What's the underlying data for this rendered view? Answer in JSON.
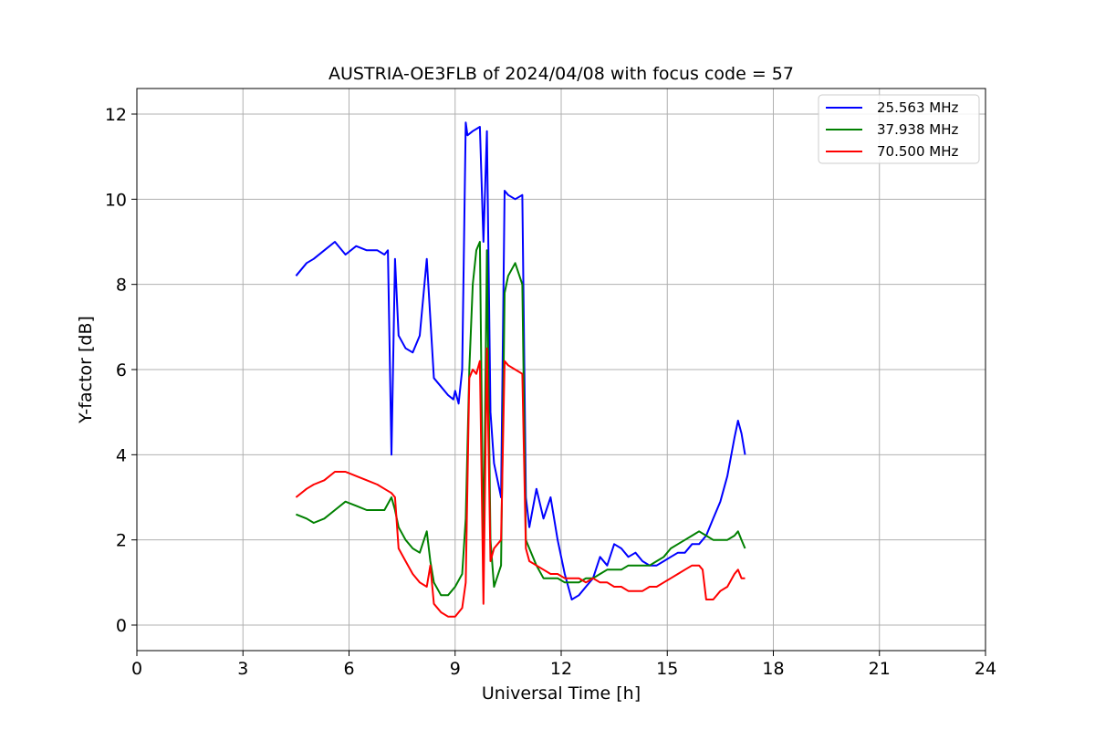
{
  "chart_data": {
    "type": "line",
    "title": "AUSTRIA-OE3FLB of 2024/04/08 with focus code = 57",
    "xlabel": "Universal Time [h]",
    "ylabel": "Y-factor [dB]",
    "xlim": [
      0,
      24
    ],
    "ylim": [
      -0.6,
      12.6
    ],
    "xticks": [
      0,
      3,
      6,
      9,
      12,
      15,
      18,
      21,
      24
    ],
    "yticks": [
      0,
      2,
      4,
      6,
      8,
      10,
      12
    ],
    "grid": true,
    "legend_position": "top-right",
    "series": [
      {
        "name": "25.563 MHz",
        "color": "#0000ff",
        "x": [
          4.5,
          4.8,
          5.0,
          5.3,
          5.6,
          5.9,
          6.2,
          6.5,
          6.8,
          7.0,
          7.1,
          7.2,
          7.3,
          7.4,
          7.6,
          7.8,
          8.0,
          8.2,
          8.4,
          8.6,
          8.8,
          8.95,
          9.0,
          9.1,
          9.2,
          9.3,
          9.35,
          9.5,
          9.7,
          9.8,
          9.9,
          10.0,
          10.1,
          10.3,
          10.4,
          10.5,
          10.7,
          10.9,
          11.0,
          11.1,
          11.3,
          11.5,
          11.7,
          11.9,
          12.1,
          12.3,
          12.5,
          12.7,
          12.9,
          13.1,
          13.3,
          13.5,
          13.7,
          13.9,
          14.1,
          14.3,
          14.5,
          14.7,
          14.9,
          15.1,
          15.3,
          15.5,
          15.7,
          15.9,
          16.1,
          16.3,
          16.5,
          16.7,
          16.9,
          17.0,
          17.1,
          17.2
        ],
        "y": [
          8.2,
          8.5,
          8.6,
          8.8,
          9.0,
          8.7,
          8.9,
          8.8,
          8.8,
          8.7,
          8.8,
          4.0,
          8.6,
          6.8,
          6.5,
          6.4,
          6.8,
          8.6,
          5.8,
          5.6,
          5.4,
          5.3,
          5.5,
          5.2,
          6.0,
          11.8,
          11.5,
          11.6,
          11.7,
          9.0,
          11.6,
          5.0,
          3.8,
          3.0,
          10.2,
          10.1,
          10.0,
          10.1,
          3.0,
          2.3,
          3.2,
          2.5,
          3.0,
          2.0,
          1.2,
          0.6,
          0.7,
          0.9,
          1.1,
          1.6,
          1.4,
          1.9,
          1.8,
          1.6,
          1.7,
          1.5,
          1.4,
          1.4,
          1.5,
          1.6,
          1.7,
          1.7,
          1.9,
          1.9,
          2.1,
          2.5,
          2.9,
          3.5,
          4.4,
          4.8,
          4.5,
          4.0
        ]
      },
      {
        "name": "37.938 MHz",
        "color": "#008000",
        "x": [
          4.5,
          4.8,
          5.0,
          5.3,
          5.6,
          5.9,
          6.2,
          6.5,
          6.8,
          7.0,
          7.2,
          7.3,
          7.4,
          7.6,
          7.8,
          8.0,
          8.2,
          8.3,
          8.4,
          8.6,
          8.8,
          9.0,
          9.2,
          9.3,
          9.4,
          9.5,
          9.6,
          9.7,
          9.8,
          9.9,
          10.0,
          10.1,
          10.3,
          10.4,
          10.5,
          10.7,
          10.9,
          11.0,
          11.1,
          11.3,
          11.5,
          11.7,
          11.9,
          12.1,
          12.3,
          12.5,
          12.7,
          12.9,
          13.1,
          13.3,
          13.5,
          13.7,
          13.9,
          14.1,
          14.3,
          14.5,
          14.7,
          14.9,
          15.1,
          15.3,
          15.5,
          15.7,
          15.9,
          16.1,
          16.3,
          16.5,
          16.7,
          16.9,
          17.0,
          17.1,
          17.2
        ],
        "y": [
          2.6,
          2.5,
          2.4,
          2.5,
          2.7,
          2.9,
          2.8,
          2.7,
          2.7,
          2.7,
          3.0,
          2.7,
          2.3,
          2.0,
          1.8,
          1.7,
          2.2,
          1.5,
          1.0,
          0.7,
          0.7,
          0.9,
          1.2,
          2.5,
          6.0,
          8.0,
          8.8,
          9.0,
          1.5,
          8.8,
          2.0,
          0.9,
          1.4,
          7.8,
          8.2,
          8.5,
          8.0,
          2.0,
          1.8,
          1.4,
          1.1,
          1.1,
          1.1,
          1.0,
          1.0,
          1.0,
          1.1,
          1.1,
          1.2,
          1.3,
          1.3,
          1.3,
          1.4,
          1.4,
          1.4,
          1.4,
          1.5,
          1.6,
          1.8,
          1.9,
          2.0,
          2.1,
          2.2,
          2.1,
          2.0,
          2.0,
          2.0,
          2.1,
          2.2,
          2.0,
          1.8
        ]
      },
      {
        "name": "70.500 MHz",
        "color": "#ff0000",
        "x": [
          4.5,
          4.8,
          5.0,
          5.3,
          5.6,
          5.9,
          6.2,
          6.5,
          6.8,
          7.0,
          7.2,
          7.3,
          7.4,
          7.6,
          7.8,
          8.0,
          8.2,
          8.3,
          8.4,
          8.6,
          8.8,
          9.0,
          9.2,
          9.3,
          9.4,
          9.5,
          9.6,
          9.7,
          9.8,
          9.9,
          10.0,
          10.1,
          10.3,
          10.4,
          10.5,
          10.7,
          10.9,
          11.0,
          11.1,
          11.3,
          11.5,
          11.7,
          11.9,
          12.1,
          12.3,
          12.5,
          12.7,
          12.9,
          13.1,
          13.3,
          13.5,
          13.7,
          13.9,
          14.1,
          14.3,
          14.5,
          14.7,
          14.9,
          15.1,
          15.3,
          15.5,
          15.7,
          15.9,
          16.0,
          16.1,
          16.3,
          16.5,
          16.7,
          16.9,
          17.0,
          17.1,
          17.2
        ],
        "y": [
          3.0,
          3.2,
          3.3,
          3.4,
          3.6,
          3.6,
          3.5,
          3.4,
          3.3,
          3.2,
          3.1,
          3.0,
          1.8,
          1.5,
          1.2,
          1.0,
          0.9,
          1.4,
          0.5,
          0.3,
          0.2,
          0.2,
          0.4,
          1.0,
          5.8,
          6.0,
          5.9,
          6.2,
          0.5,
          6.5,
          1.5,
          1.8,
          2.0,
          6.2,
          6.1,
          6.0,
          5.9,
          1.8,
          1.5,
          1.4,
          1.3,
          1.2,
          1.2,
          1.1,
          1.1,
          1.1,
          1.0,
          1.1,
          1.0,
          1.0,
          0.9,
          0.9,
          0.8,
          0.8,
          0.8,
          0.9,
          0.9,
          1.0,
          1.1,
          1.2,
          1.3,
          1.4,
          1.4,
          1.3,
          0.6,
          0.6,
          0.8,
          0.9,
          1.2,
          1.3,
          1.1,
          1.1
        ]
      }
    ]
  }
}
